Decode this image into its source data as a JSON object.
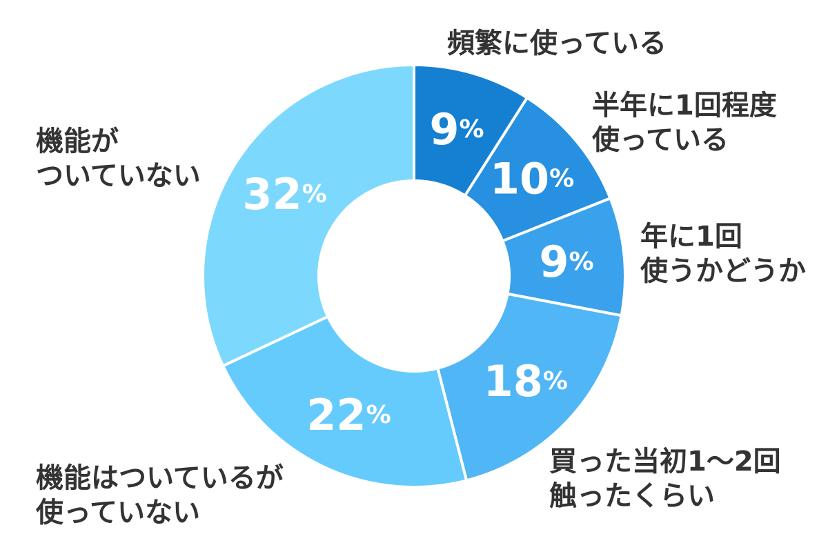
{
  "chart_data": {
    "type": "donut",
    "title": "",
    "unit": "%",
    "colors": [
      "#1580d2",
      "#2790e0",
      "#3aa1ec",
      "#50b6f5",
      "#65cbfd",
      "#7dd8fd"
    ],
    "slices": [
      {
        "label_lines": [
          "頻繁に使っている"
        ],
        "value": 9
      },
      {
        "label_lines": [
          "半年に1回程度",
          "使っている"
        ],
        "value": 10
      },
      {
        "label_lines": [
          "年に1回",
          "使うかどうか"
        ],
        "value": 9
      },
      {
        "label_lines": [
          "買った当初1〜2回",
          "触ったくらい"
        ],
        "value": 18
      },
      {
        "label_lines": [
          "機能はついているが",
          "使っていない"
        ],
        "value": 22
      },
      {
        "label_lines": [
          "機能が",
          "ついていない"
        ],
        "value": 32
      }
    ]
  }
}
